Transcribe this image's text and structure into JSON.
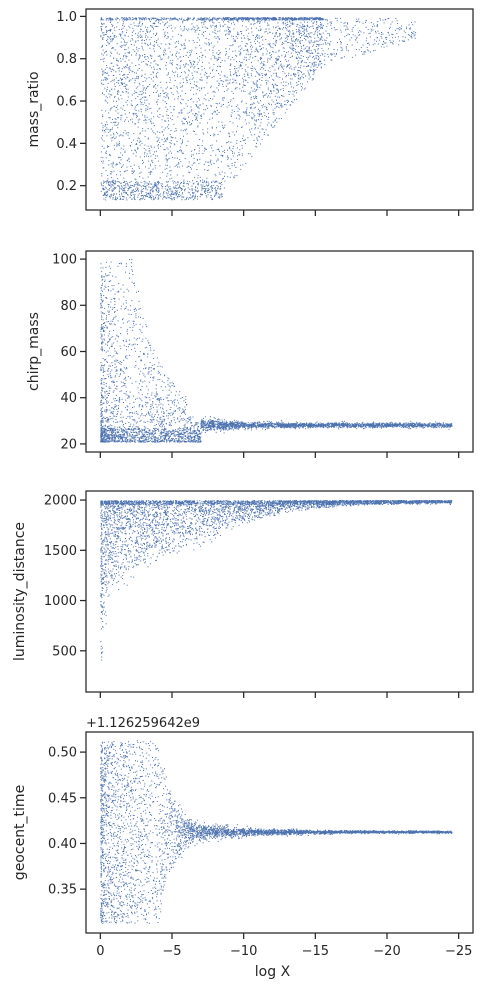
{
  "chart_data": [
    {
      "type": "scatter",
      "ylabel": "mass_ratio",
      "xlabel": "",
      "xlim": [
        1,
        -26
      ],
      "ylim": [
        0.085,
        1.035
      ],
      "yticks": [
        0.2,
        0.4,
        0.6,
        0.8,
        1.0
      ],
      "ytick_labels": [
        "0.2",
        "0.4",
        "0.6",
        "0.8",
        "1.0"
      ],
      "xticks": [
        0,
        -5,
        -10,
        -15,
        -20,
        -25
      ],
      "xtick_labels_visible": false,
      "color": "#4c72b0"
    },
    {
      "type": "scatter",
      "ylabel": "chirp_mass",
      "xlabel": "",
      "xlim": [
        1,
        -26
      ],
      "ylim": [
        16.5,
        103.5
      ],
      "yticks": [
        20,
        40,
        60,
        80,
        100
      ],
      "ytick_labels": [
        "20",
        "40",
        "60",
        "80",
        "100"
      ],
      "xticks": [
        0,
        -5,
        -10,
        -15,
        -20,
        -25
      ],
      "xtick_labels_visible": false,
      "color": "#4c72b0"
    },
    {
      "type": "scatter",
      "ylabel": "luminosity_distance",
      "xlabel": "",
      "xlim": [
        1,
        -26
      ],
      "ylim": [
        90,
        2090
      ],
      "yticks": [
        500,
        1000,
        1500,
        2000
      ],
      "ytick_labels": [
        "500",
        "1000",
        "1500",
        "2000"
      ],
      "xticks": [
        0,
        -5,
        -10,
        -15,
        -20,
        -25
      ],
      "xtick_labels_visible": false,
      "color": "#4c72b0"
    },
    {
      "type": "scatter",
      "ylabel": "geocent_time",
      "xlabel": "log X",
      "offset_text": "+1.126259642e9",
      "xlim": [
        1,
        -26
      ],
      "ylim": [
        0.302,
        0.522
      ],
      "yticks": [
        0.35,
        0.4,
        0.45,
        0.5
      ],
      "ytick_labels": [
        "0.35",
        "0.40",
        "0.45",
        "0.50"
      ],
      "xticks": [
        0,
        -5,
        -10,
        -15,
        -20,
        -25
      ],
      "xtick_labels": [
        "0",
        "−5",
        "−10",
        "−15",
        "−20",
        "−25"
      ],
      "xtick_labels_visible": true,
      "color": "#4c72b0"
    }
  ]
}
